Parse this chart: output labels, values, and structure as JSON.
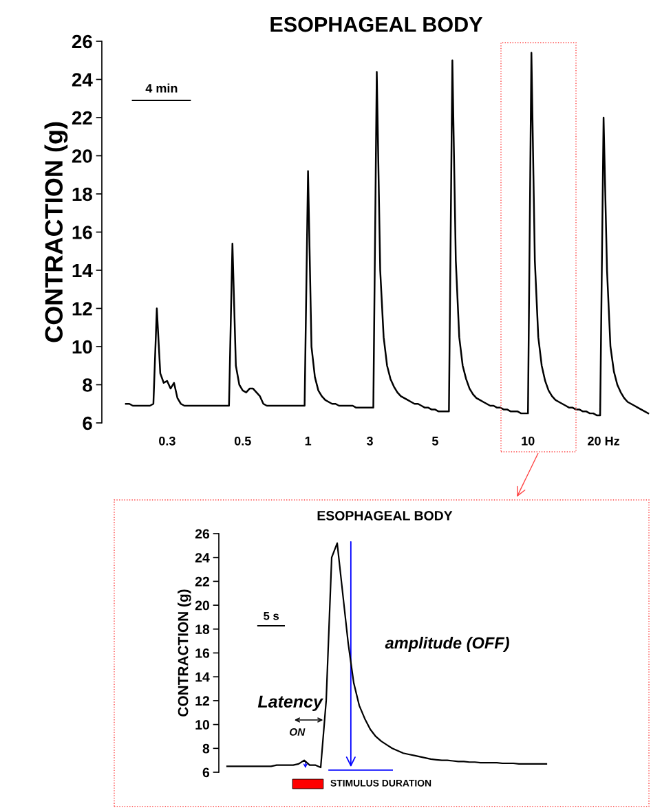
{
  "chart_data": [
    {
      "type": "line",
      "title": "ESOPHAGEAL BODY",
      "ylabel": "CONTRACTION (g)",
      "ylim": [
        6,
        26
      ],
      "yticks": [
        6,
        8,
        10,
        12,
        14,
        16,
        18,
        20,
        22,
        24,
        26
      ],
      "categories": [
        null,
        null,
        null,
        null,
        null,
        null,
        null,
        null,
        null,
        null,
        null,
        null,
        "0.3",
        null,
        null,
        null,
        null,
        null,
        null,
        null,
        null,
        null,
        null,
        null,
        null,
        null,
        null,
        null,
        null,
        null,
        null,
        null,
        null,
        null,
        "0.5",
        null,
        null,
        null,
        null,
        null,
        null,
        null,
        null,
        null,
        null,
        null,
        null,
        null,
        null,
        null,
        null,
        null,
        null,
        "1",
        null,
        null,
        null,
        null,
        null,
        null,
        null,
        null,
        null,
        null,
        null,
        null,
        null,
        null,
        null,
        null,
        null,
        "3",
        null,
        null,
        null,
        null,
        null,
        null,
        null,
        null,
        null,
        null,
        null,
        null,
        null,
        null,
        null,
        null,
        null,
        null,
        "5",
        null,
        null,
        null,
        null,
        null,
        null,
        null,
        null,
        null,
        null,
        null,
        null,
        null,
        null,
        null,
        null,
        null,
        null,
        null,
        null,
        null,
        null,
        null,
        null,
        null,
        null,
        "10",
        null,
        null,
        null,
        null,
        null,
        null,
        null,
        null,
        null,
        null,
        null,
        null,
        null,
        null,
        null,
        null,
        null,
        null,
        null,
        null,
        null,
        "20 Hz",
        null,
        null,
        null,
        null,
        null,
        null,
        null,
        null,
        null,
        null,
        null,
        null,
        null
      ],
      "grid": false,
      "legend": false,
      "series": [
        {
          "color": "#000000",
          "values": [
            7.0,
            7.0,
            6.9,
            6.9,
            6.9,
            6.9,
            6.9,
            6.9,
            7.0,
            12.0,
            8.6,
            8.1,
            8.2,
            7.8,
            8.1,
            7.3,
            7.0,
            6.9,
            6.9,
            6.9,
            6.9,
            6.9,
            6.9,
            6.9,
            6.9,
            6.9,
            6.9,
            6.9,
            6.9,
            6.9,
            6.9,
            15.4,
            9.0,
            8.0,
            7.7,
            7.6,
            7.8,
            7.8,
            7.6,
            7.4,
            7.0,
            6.9,
            6.9,
            6.9,
            6.9,
            6.9,
            6.9,
            6.9,
            6.9,
            6.9,
            6.9,
            6.9,
            6.9,
            19.2,
            10.0,
            8.4,
            7.7,
            7.4,
            7.2,
            7.1,
            7.0,
            7.0,
            6.9,
            6.9,
            6.9,
            6.9,
            6.9,
            6.8,
            6.8,
            6.8,
            6.8,
            6.8,
            6.8,
            24.4,
            14.0,
            10.5,
            9.0,
            8.3,
            7.9,
            7.6,
            7.4,
            7.3,
            7.2,
            7.1,
            7.0,
            7.0,
            6.9,
            6.8,
            6.8,
            6.7,
            6.7,
            6.6,
            6.6,
            6.6,
            6.6,
            25.0,
            14.5,
            10.5,
            9.0,
            8.3,
            7.8,
            7.5,
            7.3,
            7.2,
            7.1,
            7.0,
            6.9,
            6.9,
            6.8,
            6.8,
            6.7,
            6.7,
            6.6,
            6.6,
            6.6,
            6.5,
            6.5,
            6.5,
            25.4,
            14.5,
            10.5,
            9.0,
            8.2,
            7.7,
            7.4,
            7.2,
            7.1,
            7.0,
            6.9,
            6.8,
            6.8,
            6.7,
            6.7,
            6.6,
            6.6,
            6.5,
            6.5,
            6.4,
            6.4,
            22.0,
            14.0,
            10.0,
            8.7,
            8.0,
            7.6,
            7.3,
            7.1,
            7.0,
            6.9,
            6.8,
            6.7,
            6.6,
            6.5
          ]
        }
      ],
      "annotations": [
        "4 min"
      ]
    },
    {
      "type": "line",
      "title": "ESOPHAGEAL BODY",
      "ylabel": "CONTRACTION (g)",
      "ylim": [
        6,
        26
      ],
      "yticks": [
        6,
        8,
        10,
        12,
        14,
        16,
        18,
        20,
        22,
        24,
        26
      ],
      "categories": [
        null,
        null,
        null,
        null,
        null,
        null,
        null,
        null,
        null,
        null,
        null,
        null,
        null,
        null,
        null,
        null,
        null,
        null,
        null,
        null,
        null,
        null,
        null,
        null,
        null,
        null,
        null,
        null,
        null,
        null,
        null,
        null,
        null,
        null,
        null,
        null,
        null,
        null,
        null,
        null,
        null,
        null,
        null,
        null,
        null,
        null,
        null,
        null,
        null,
        null,
        null,
        null,
        null,
        null,
        null,
        null,
        null,
        null,
        null
      ],
      "tick_labels": "y",
      "grid": false,
      "legend": false,
      "series": [
        {
          "color": "#000000",
          "values": [
            6.5,
            6.5,
            6.5,
            6.5,
            6.5,
            6.5,
            6.5,
            6.5,
            6.5,
            6.6,
            6.6,
            6.6,
            6.6,
            6.7,
            7.0,
            6.6,
            6.6,
            6.4,
            12.0,
            24.0,
            25.2,
            21.0,
            16.8,
            13.5,
            11.6,
            10.5,
            9.6,
            9.0,
            8.6,
            8.3,
            8.0,
            7.8,
            7.6,
            7.5,
            7.4,
            7.3,
            7.2,
            7.1,
            7.05,
            7.0,
            7.0,
            6.95,
            6.9,
            6.9,
            6.85,
            6.85,
            6.8,
            6.8,
            6.8,
            6.8,
            6.75,
            6.75,
            6.75,
            6.7,
            6.7,
            6.7,
            6.7,
            6.7,
            6.7
          ]
        }
      ],
      "annotations": [
        "5 s",
        "Latency",
        "ON",
        "amplitude (OFF)",
        "STIMULUS DURATION"
      ]
    }
  ]
}
